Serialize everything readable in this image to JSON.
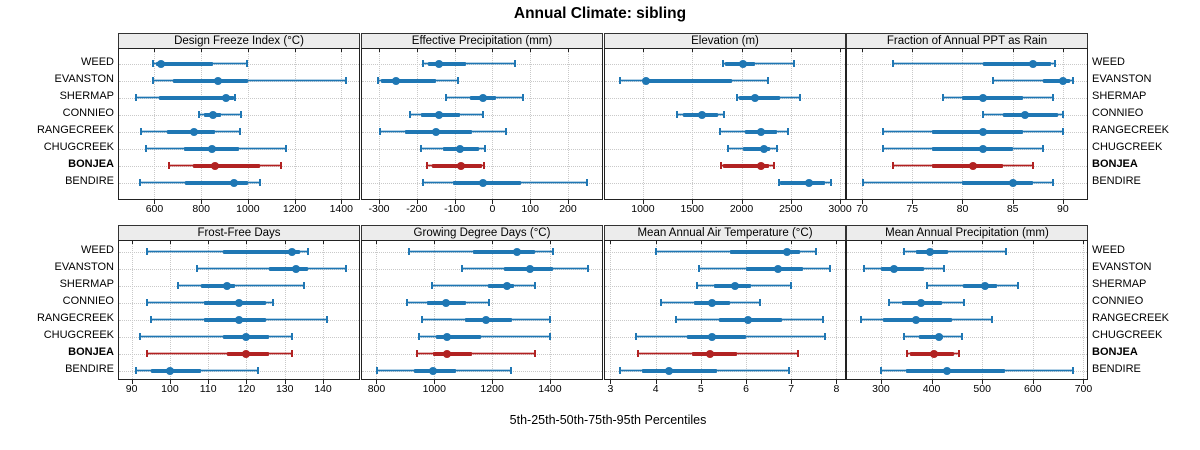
{
  "title": "Annual Climate: sibling",
  "caption": "5th-25th-50th-75th-95th Percentiles",
  "colors": {
    "series": "#1f77b4",
    "series_band": "rgba(31,119,180,0.33)",
    "highlight": "#b22222",
    "highlight_band": "rgba(178,34,34,0.33)",
    "strip_bg": "#ececec",
    "grid": "#c9c9c9",
    "border": "#222222"
  },
  "sites": [
    {
      "name": "WEED",
      "highlight": false
    },
    {
      "name": "EVANSTON",
      "highlight": false
    },
    {
      "name": "SHERMAP",
      "highlight": false
    },
    {
      "name": "CONNIEO",
      "highlight": false
    },
    {
      "name": "RANGECREEK",
      "highlight": false
    },
    {
      "name": "CHUGCREEK",
      "highlight": false
    },
    {
      "name": "BONJEA",
      "highlight": true
    },
    {
      "name": "BENDIRE",
      "highlight": false
    }
  ],
  "chart_data": {
    "type": "dotplot-intervals",
    "percentiles": [
      5,
      25,
      50,
      75,
      95
    ],
    "legend_position": "none",
    "grid": "dotted",
    "panels": [
      {
        "title": "Design Freeze Index (°C)",
        "row": 0,
        "col": 0,
        "xlim": [
          448,
          1476
        ],
        "ticks": [
          600,
          800,
          1000,
          1200,
          1400
        ],
        "values": {
          "WEED": [
            590,
            605,
            630,
            850,
            995
          ],
          "EVANSTON": [
            590,
            680,
            870,
            1000,
            1420
          ],
          "SHERMAP": [
            520,
            620,
            905,
            940,
            945
          ],
          "CONNIEO": [
            790,
            810,
            850,
            885,
            970
          ],
          "RANGECREEK": [
            540,
            655,
            770,
            860,
            965
          ],
          "CHUGCREEK": [
            560,
            725,
            845,
            960,
            1165
          ],
          "BONJEA": [
            660,
            765,
            860,
            1050,
            1140
          ],
          "BENDIRE": [
            535,
            730,
            940,
            1000,
            1050
          ]
        }
      },
      {
        "title": "Effective Precipitation (mm)",
        "row": 0,
        "col": 1,
        "xlim": [
          -345,
          290
        ],
        "ticks": [
          -300,
          -200,
          -100,
          0,
          100,
          200
        ],
        "values": {
          "WEED": [
            -185,
            -170,
            -140,
            -70,
            60
          ],
          "EVANSTON": [
            -305,
            -295,
            -255,
            -150,
            -90
          ],
          "SHERMAP": [
            -125,
            -60,
            -25,
            10,
            80
          ],
          "CONNIEO": [
            -220,
            -190,
            -140,
            -85,
            -25
          ],
          "RANGECREEK": [
            -300,
            -230,
            -150,
            -55,
            35
          ],
          "CHUGCREEK": [
            -190,
            -130,
            -85,
            -35,
            -20
          ],
          "BONJEA": [
            -175,
            -160,
            -82,
            -28,
            -23
          ],
          "BENDIRE": [
            -185,
            -105,
            -25,
            75,
            250
          ]
        }
      },
      {
        "title": "Elevation (m)",
        "row": 0,
        "col": 2,
        "xlim": [
          615,
          3050
        ],
        "ticks": [
          1000,
          1500,
          2000,
          2500,
          3000
        ],
        "values": {
          "WEED": [
            1810,
            1835,
            2015,
            2140,
            2530
          ],
          "EVANSTON": [
            765,
            1005,
            1030,
            1900,
            2265
          ],
          "SHERMAP": [
            1945,
            1970,
            2140,
            2390,
            2590
          ],
          "CONNIEO": [
            1340,
            1410,
            1600,
            1765,
            1825
          ],
          "RANGECREEK": [
            1775,
            2035,
            2200,
            2360,
            2470
          ],
          "CHUGCREEK": [
            1860,
            2020,
            2225,
            2290,
            2365
          ],
          "BONJEA": [
            1790,
            1815,
            2195,
            2275,
            2325
          ],
          "BENDIRE": [
            2375,
            2395,
            2680,
            2850,
            2910
          ]
        }
      },
      {
        "title": "Fraction of Annual PPT as Rain",
        "row": 0,
        "col": 3,
        "xlim": [
          68.5,
          92.4
        ],
        "ticks": [
          70,
          75,
          80,
          85,
          90
        ],
        "values": {
          "WEED": [
            73,
            82,
            87,
            88.8,
            89.2
          ],
          "EVANSTON": [
            83,
            88,
            90,
            90.7,
            91
          ],
          "SHERMAP": [
            78,
            80,
            82,
            86,
            89
          ],
          "CONNIEO": [
            82,
            84,
            86.2,
            89.5,
            90
          ],
          "RANGECREEK": [
            72,
            77,
            82,
            86,
            90
          ],
          "CHUGCREEK": [
            72,
            77,
            82,
            85,
            88
          ],
          "BONJEA": [
            73,
            77,
            81,
            84,
            87
          ],
          "BENDIRE": [
            70,
            80,
            85,
            87,
            89
          ]
        }
      },
      {
        "title": "Frost-Free Days",
        "row": 1,
        "col": 0,
        "xlim": [
          86.7,
          149.4
        ],
        "ticks": [
          90,
          100,
          110,
          120,
          130,
          140
        ],
        "values": {
          "WEED": [
            94,
            114,
            132,
            134,
            136
          ],
          "EVANSTON": [
            107,
            126,
            133,
            136,
            146
          ],
          "SHERMAP": [
            102,
            108,
            115,
            117,
            135
          ],
          "CONNIEO": [
            94,
            109,
            118,
            125,
            127
          ],
          "RANGECREEK": [
            95,
            109,
            118,
            125,
            141
          ],
          "CHUGCREEK": [
            92,
            114,
            120,
            126,
            132
          ],
          "BONJEA": [
            94,
            115,
            120,
            126,
            132
          ],
          "BENDIRE": [
            91,
            95,
            100,
            108,
            123
          ]
        }
      },
      {
        "title": "Growing Degree Days (°C)",
        "row": 1,
        "col": 1,
        "xlim": [
          750,
          1580
        ],
        "ticks": [
          800,
          1000,
          1200,
          1400
        ],
        "values": {
          "WEED": [
            910,
            1135,
            1285,
            1350,
            1410
          ],
          "EVANSTON": [
            1095,
            1240,
            1330,
            1410,
            1530
          ],
          "SHERMAP": [
            990,
            1185,
            1250,
            1275,
            1350
          ],
          "CONNIEO": [
            905,
            975,
            1040,
            1110,
            1190
          ],
          "RANGECREEK": [
            955,
            1105,
            1180,
            1270,
            1400
          ],
          "CHUGCREEK": [
            945,
            1005,
            1045,
            1160,
            1400
          ],
          "BONJEA": [
            940,
            995,
            1045,
            1130,
            1350
          ],
          "BENDIRE": [
            800,
            930,
            995,
            1075,
            1265
          ]
        }
      },
      {
        "title": "Mean Annual Air Temperature (°C)",
        "row": 1,
        "col": 2,
        "xlim": [
          2.88,
          8.19
        ],
        "ticks": [
          3,
          4,
          5,
          6,
          7,
          8
        ],
        "values": {
          "WEED": [
            4.0,
            5.65,
            6.9,
            7.2,
            7.55
          ],
          "EVANSTON": [
            4.95,
            6.0,
            6.7,
            7.25,
            7.85
          ],
          "SHERMAP": [
            4.9,
            5.3,
            5.75,
            6.1,
            7.0
          ],
          "CONNIEO": [
            4.1,
            4.85,
            5.25,
            5.65,
            6.3
          ],
          "RANGECREEK": [
            4.45,
            5.4,
            6.05,
            6.8,
            7.7
          ],
          "CHUGCREEK": [
            3.55,
            4.7,
            5.25,
            6.0,
            7.75
          ],
          "BONJEA": [
            3.6,
            4.8,
            5.2,
            5.8,
            7.15
          ],
          "BENDIRE": [
            3.2,
            3.7,
            4.3,
            5.35,
            6.95
          ]
        }
      },
      {
        "title": "Mean Annual Precipitation (mm)",
        "row": 1,
        "col": 3,
        "xlim": [
          233,
          707
        ],
        "ticks": [
          300,
          400,
          500,
          600,
          700
        ],
        "values": {
          "WEED": [
            345,
            370,
            397,
            433,
            547
          ],
          "EVANSTON": [
            265,
            300,
            325,
            385,
            425
          ],
          "SHERMAP": [
            390,
            463,
            505,
            530,
            570
          ],
          "CONNIEO": [
            315,
            342,
            380,
            420,
            465
          ],
          "RANGECREEK": [
            260,
            305,
            370,
            440,
            520
          ],
          "CHUGCREEK": [
            345,
            375,
            415,
            423,
            460
          ],
          "BONJEA": [
            350,
            358,
            405,
            445,
            455
          ],
          "BENDIRE": [
            300,
            350,
            430,
            545,
            680
          ]
        }
      }
    ]
  }
}
